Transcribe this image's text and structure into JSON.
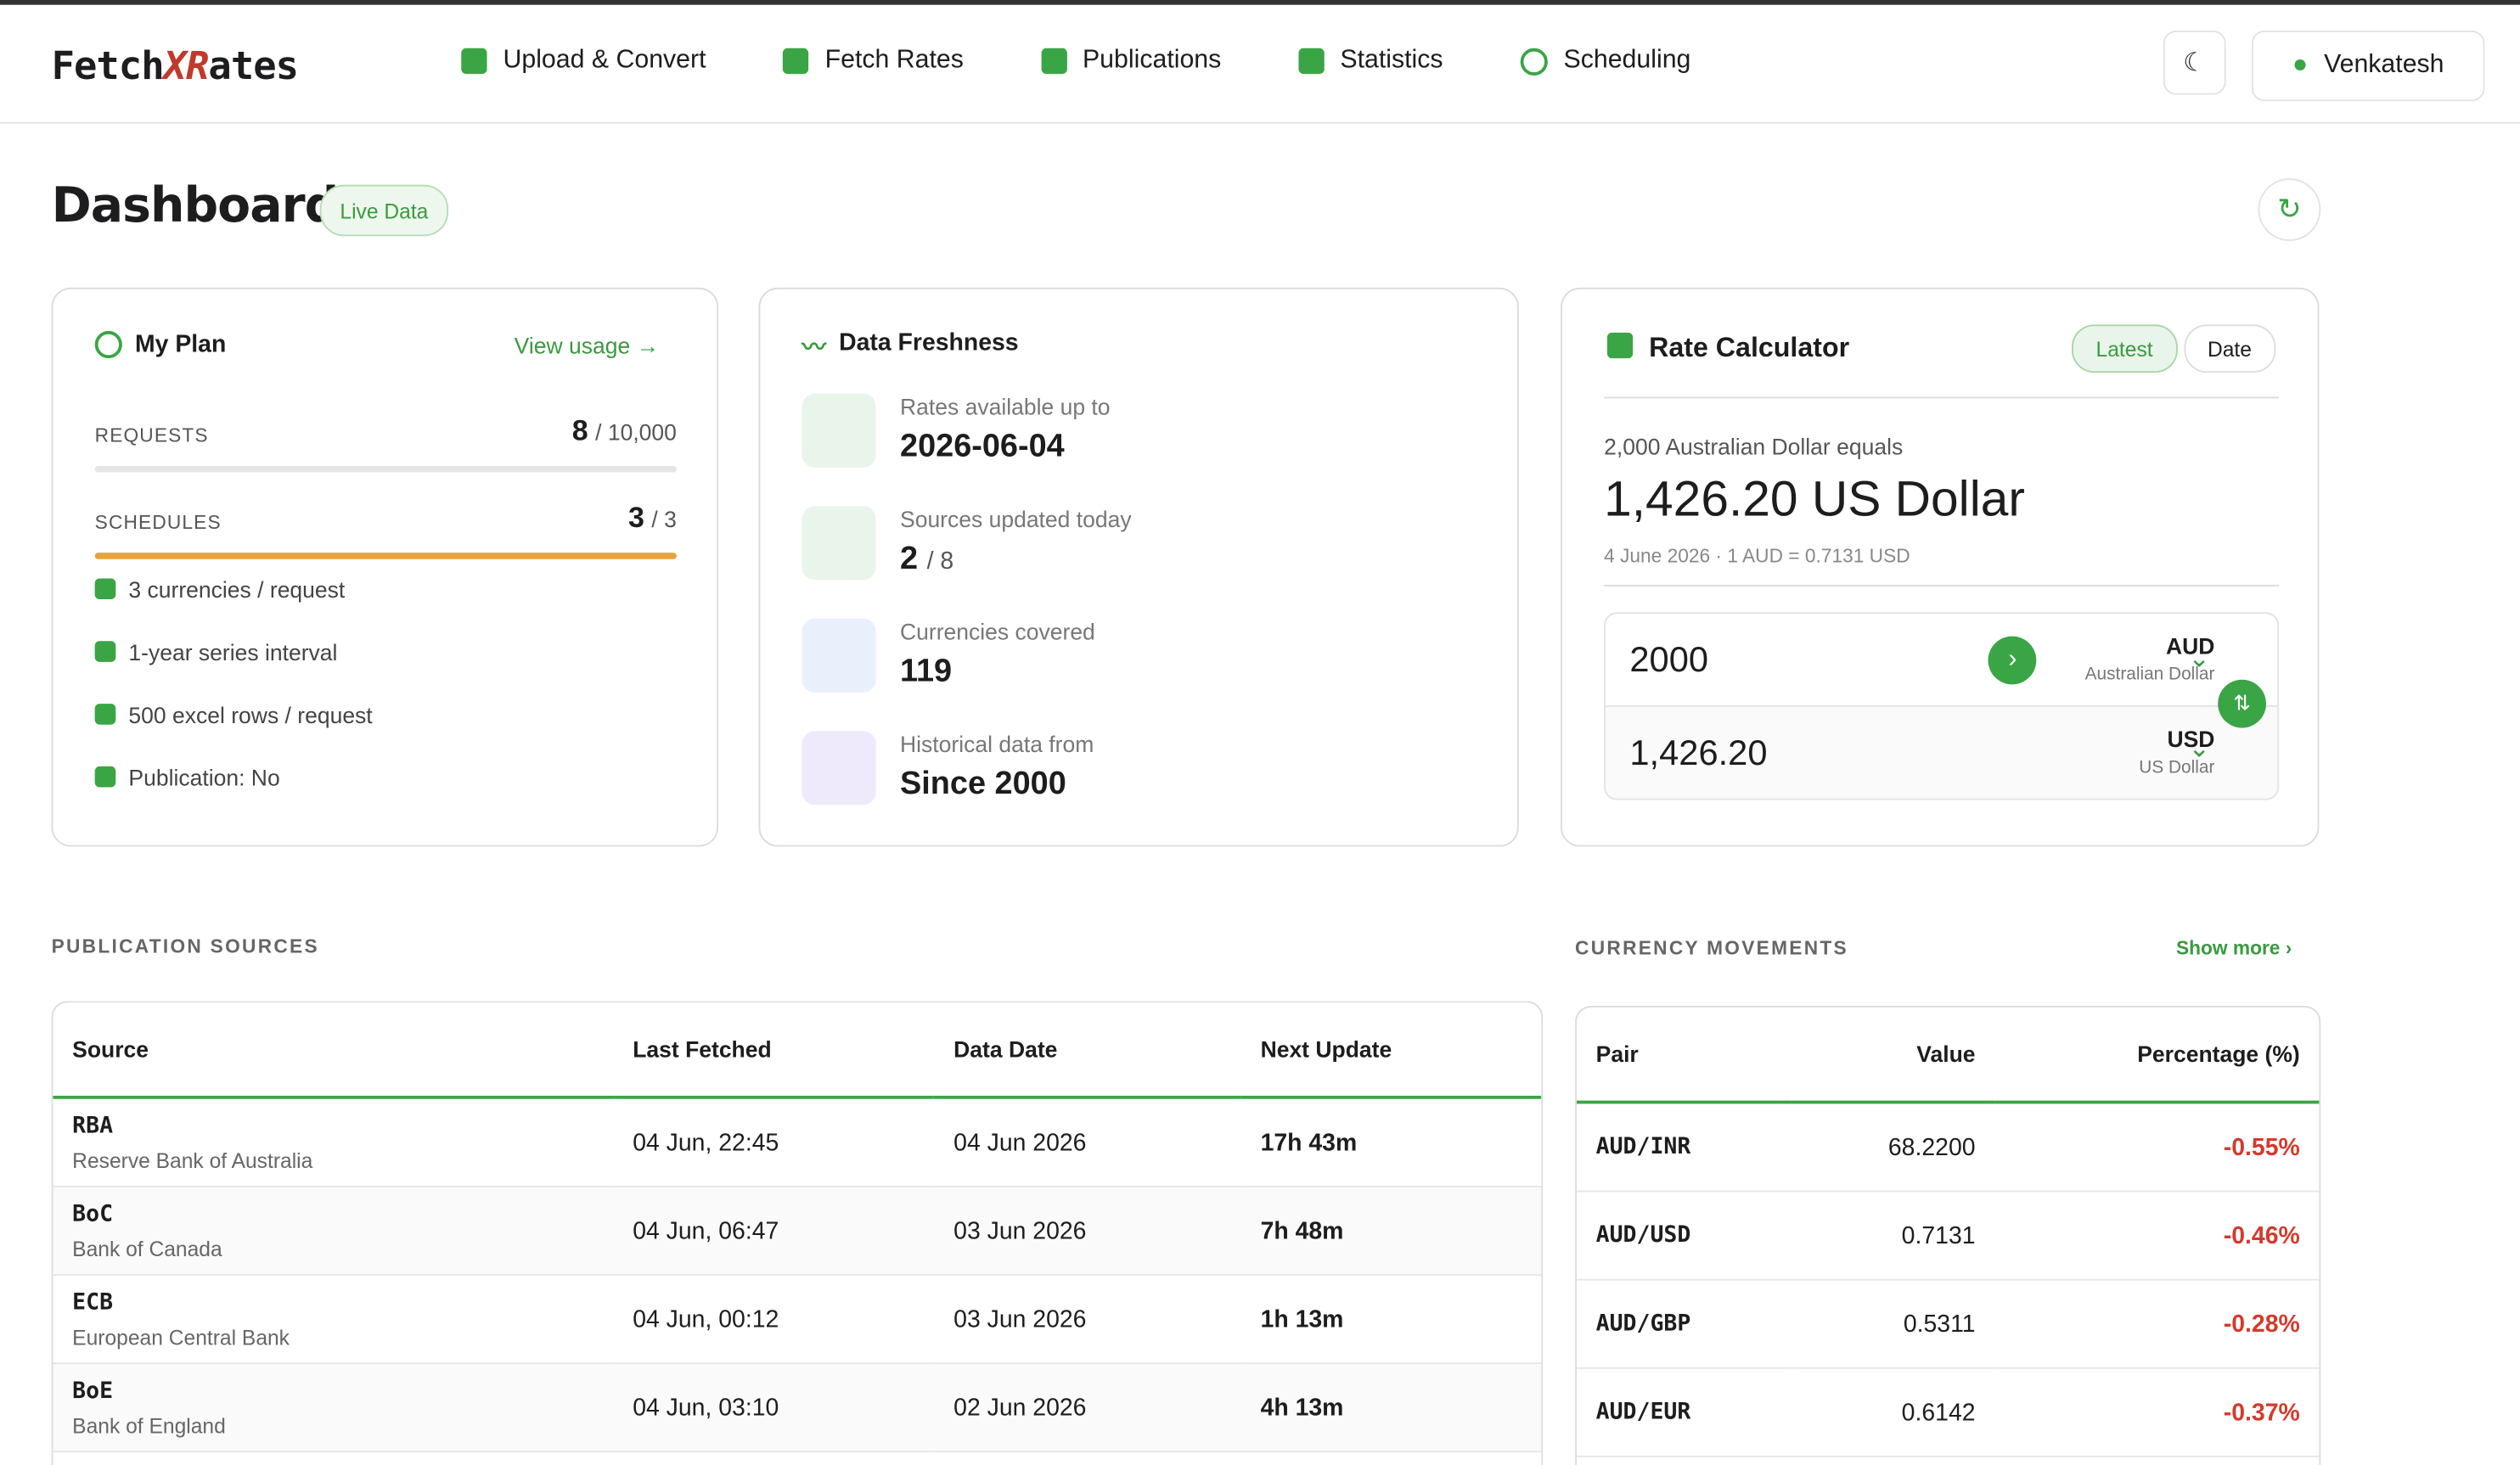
{
  "header": {
    "logo": [
      "Fetch",
      "XR",
      "ates"
    ],
    "nav": [
      "Upload & Convert",
      "Fetch Rates",
      "Publications",
      "Statistics",
      "Scheduling"
    ],
    "user": "Venkatesh"
  },
  "dashboard": {
    "title": "Dashboard",
    "badge": "Live Data"
  },
  "plan": {
    "title": "My Plan",
    "link": "View usage",
    "quotas": [
      {
        "label": "REQUESTS",
        "used": "8",
        "limit": "/ 10,000"
      },
      {
        "label": "SCHEDULES",
        "used": "3",
        "limit": "/ 3"
      }
    ],
    "features": [
      "3 currencies / request",
      "1-year series interval",
      "500 excel rows / request",
      "Publication: No"
    ]
  },
  "freshness": {
    "title": "Data Freshness",
    "items": [
      {
        "label": "Rates available up to",
        "value": "2026-06-04",
        "suffix": ""
      },
      {
        "label": "Sources updated today",
        "value": "2",
        "suffix": "/ 8"
      },
      {
        "label": "Currencies covered",
        "value": "119",
        "suffix": ""
      },
      {
        "label": "Historical data from",
        "value": "Since 2000",
        "suffix": ""
      }
    ]
  },
  "calculator": {
    "title": "Rate Calculator",
    "tabs": [
      "Latest",
      "Date"
    ],
    "caption": "2,000 Australian Dollar equals",
    "result": "1,426.20 US Dollar",
    "meta": "4 June 2026 · 1 AUD = 0.7131 USD",
    "from": {
      "amount": "2000",
      "code": "AUD",
      "name": "Australian Dollar"
    },
    "to": {
      "amount": "1,426.20",
      "code": "USD",
      "name": "US Dollar"
    }
  },
  "sources": {
    "heading": "PUBLICATION SOURCES",
    "columns": [
      "Source",
      "Last Fetched",
      "Data Date",
      "Next Update"
    ],
    "rows": [
      [
        "RBA",
        "Reserve Bank of Australia",
        "04 Jun, 22:45",
        "04 Jun 2026",
        "17h 43m"
      ],
      [
        "BoC",
        "Bank of Canada",
        "04 Jun, 06:47",
        "03 Jun 2026",
        "7h 48m"
      ],
      [
        "ECB",
        "European Central Bank",
        "04 Jun, 00:12",
        "03 Jun 2026",
        "1h 13m"
      ],
      [
        "BoE",
        "Bank of England",
        "04 Jun, 03:10",
        "02 Jun 2026",
        "4h 13m"
      ]
    ]
  },
  "movements": {
    "heading": "CURRENCY MOVEMENTS",
    "link": "Show more",
    "columns": [
      "Pair",
      "Value",
      "Percentage (%)"
    ],
    "rows": [
      [
        "AUD/INR",
        "68.2200",
        "-0.55%"
      ],
      [
        "AUD/USD",
        "0.7131",
        "-0.46%"
      ],
      [
        "AUD/GBP",
        "0.5311",
        "-0.28%"
      ],
      [
        "AUD/EUR",
        "0.6142",
        "-0.37%"
      ]
    ]
  }
}
